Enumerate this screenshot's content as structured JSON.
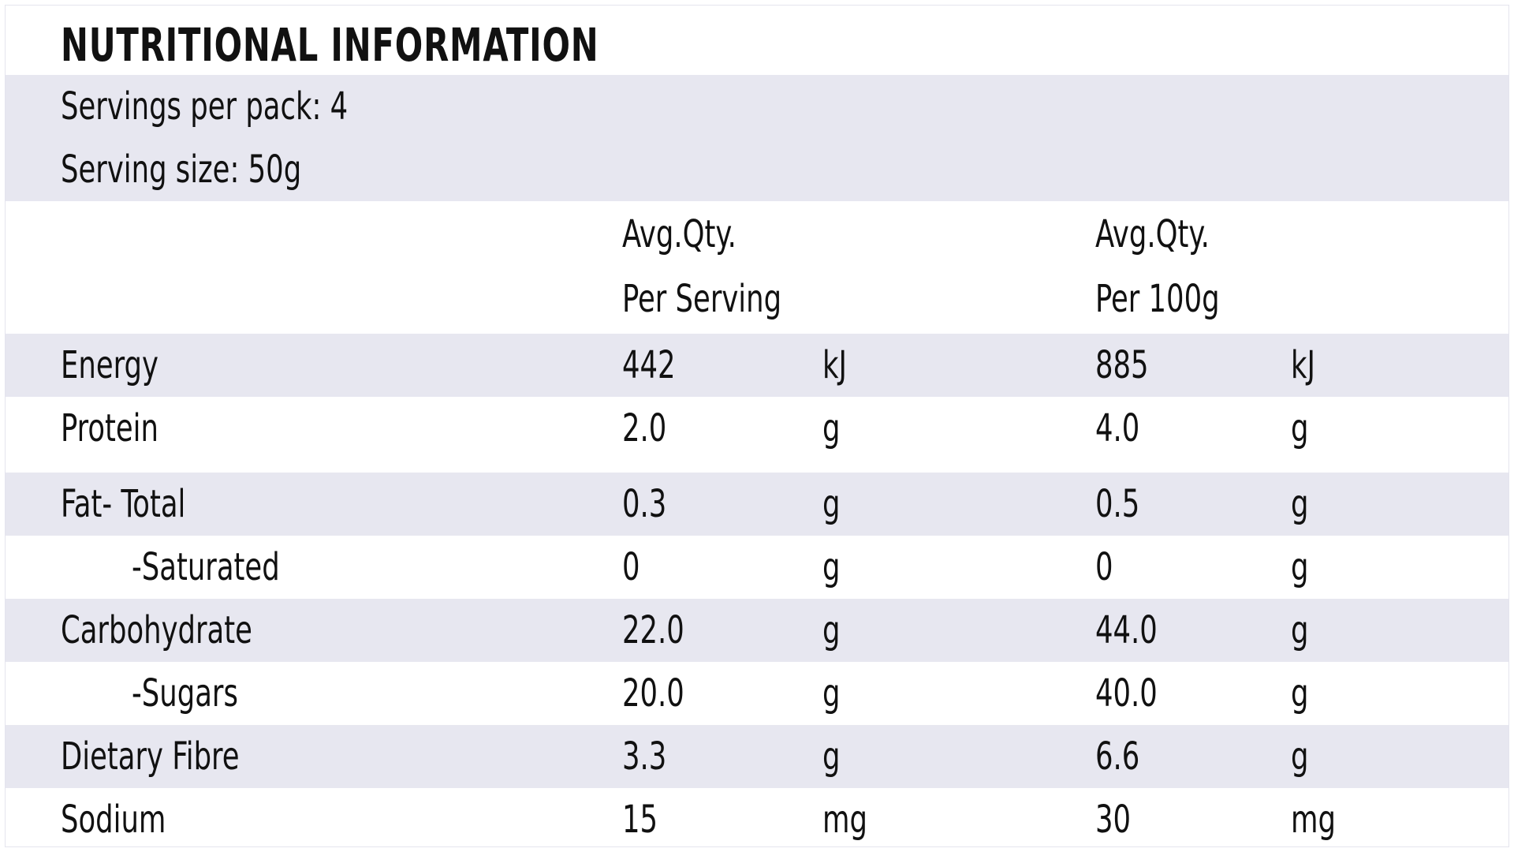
{
  "title": "NUTRITIONAL INFORMATION",
  "servings_per_pack": "Servings per pack: 4",
  "serving_size": "Serving size: 50g",
  "header": {
    "col1_line1": "Avg.Qty.",
    "col1_line2": "Per Serving",
    "col2_line1": "Avg.Qty.",
    "col2_line2": "Per 100g"
  },
  "rows": [
    {
      "name": "Energy",
      "per_serving": "442",
      "unit_serving": "kJ",
      "per_100g": "885",
      "unit_100g": "kJ"
    },
    {
      "name": "Protein",
      "per_serving": "2.0",
      "unit_serving": "g",
      "per_100g": "4.0",
      "unit_100g": "g"
    },
    {
      "name": "Fat- Total",
      "per_serving": "0.3",
      "unit_serving": "g",
      "per_100g": "0.5",
      "unit_100g": "g"
    },
    {
      "name": "-Saturated",
      "per_serving": "0",
      "unit_serving": "g",
      "per_100g": "0",
      "unit_100g": "g"
    },
    {
      "name": "Carbohydrate",
      "per_serving": "22.0",
      "unit_serving": "g",
      "per_100g": "44.0",
      "unit_100g": "g"
    },
    {
      "name": "-Sugars",
      "per_serving": "20.0",
      "unit_serving": "g",
      "per_100g": "40.0",
      "unit_100g": "g"
    },
    {
      "name": "Dietary Fibre",
      "per_serving": "3.3",
      "unit_serving": "g",
      "per_100g": "6.6",
      "unit_100g": "g"
    },
    {
      "name": "Sodium",
      "per_serving": "15",
      "unit_serving": "mg",
      "per_100g": "30",
      "unit_100g": "mg"
    }
  ]
}
